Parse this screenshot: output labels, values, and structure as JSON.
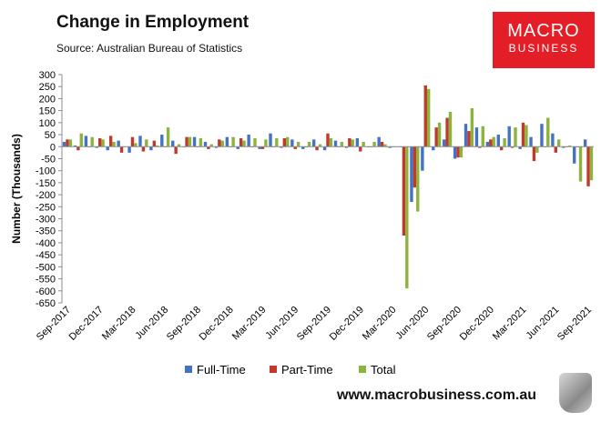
{
  "header": {
    "title": "Change in Employment",
    "subtitle": "Source: Australian Bureau of Statistics"
  },
  "logo": {
    "line1": "MACRO",
    "line2": "BUSINESS"
  },
  "footer": {
    "website": "www.macrobusiness.com.au"
  },
  "colors": {
    "full_time": "#4472c4",
    "part_time": "#c0392b",
    "total": "#8cb43c",
    "logo_bg": "#e41e26"
  },
  "chart_data": {
    "type": "bar",
    "title": "Change in Employment",
    "xlabel": "",
    "ylabel": "Number (Thousands)",
    "ylim": [
      -650,
      300
    ],
    "yticks": [
      300,
      250,
      200,
      150,
      100,
      50,
      0,
      -50,
      -100,
      -150,
      -200,
      -250,
      -300,
      -350,
      -400,
      -450,
      -500,
      -550,
      -600,
      -650
    ],
    "xtick_labels": [
      "Sep-2017",
      "Dec-2017",
      "Mar-2018",
      "Jun-2018",
      "Sep-2018",
      "Dec-2018",
      "Mar-2019",
      "Jun-2019",
      "Sep-2019",
      "Dec-2019",
      "Mar-2020",
      "Jun-2020",
      "Sep-2020",
      "Dec-2020",
      "Mar-2021",
      "Jun-2021",
      "Sep-2021"
    ],
    "categories": [
      "Sep-2017",
      "Oct-2017",
      "Nov-2017",
      "Dec-2017",
      "Jan-2018",
      "Feb-2018",
      "Mar-2018",
      "Apr-2018",
      "May-2018",
      "Jun-2018",
      "Jul-2018",
      "Aug-2018",
      "Sep-2018",
      "Oct-2018",
      "Nov-2018",
      "Dec-2018",
      "Jan-2019",
      "Feb-2019",
      "Mar-2019",
      "Apr-2019",
      "May-2019",
      "Jun-2019",
      "Jul-2019",
      "Aug-2019",
      "Sep-2019",
      "Oct-2019",
      "Nov-2019",
      "Dec-2019",
      "Jan-2020",
      "Feb-2020",
      "Mar-2020",
      "Apr-2020",
      "May-2020",
      "Jun-2020",
      "Jul-2020",
      "Aug-2020",
      "Sep-2020",
      "Oct-2020",
      "Nov-2020",
      "Dec-2020",
      "Jan-2021",
      "Feb-2021",
      "Mar-2021",
      "Apr-2021",
      "May-2021",
      "Jun-2021",
      "Jul-2021",
      "Aug-2021",
      "Sep-2021"
    ],
    "legend": {
      "position": "bottom"
    },
    "grid": false,
    "series": [
      {
        "name": "Full-Time",
        "values": [
          20,
          5,
          45,
          -5,
          -15,
          25,
          -25,
          45,
          -15,
          50,
          25,
          0,
          40,
          20,
          -5,
          40,
          -10,
          50,
          -10,
          55,
          -5,
          30,
          -10,
          30,
          -15,
          25,
          -5,
          35,
          0,
          40,
          -5,
          0,
          -230,
          -100,
          -15,
          30,
          -50,
          95,
          80,
          20,
          50,
          85,
          -10,
          40,
          95,
          55,
          -5,
          -70,
          30
        ]
      },
      {
        "name": "Part-Time",
        "values": [
          30,
          -15,
          0,
          35,
          45,
          -25,
          40,
          -20,
          25,
          0,
          -30,
          40,
          0,
          -10,
          30,
          0,
          35,
          0,
          -10,
          0,
          35,
          -10,
          0,
          -15,
          55,
          0,
          35,
          -20,
          0,
          20,
          0,
          -370,
          -170,
          255,
          80,
          120,
          -45,
          65,
          -5,
          30,
          -15,
          -5,
          100,
          -60,
          0,
          -25,
          0,
          0,
          -165
        ]
      },
      {
        "name": "Total",
        "values": [
          30,
          55,
          40,
          30,
          20,
          0,
          15,
          30,
          5,
          80,
          10,
          40,
          35,
          10,
          25,
          40,
          25,
          35,
          30,
          35,
          40,
          20,
          20,
          10,
          35,
          20,
          30,
          20,
          20,
          10,
          0,
          -590,
          -270,
          240,
          100,
          145,
          -45,
          160,
          85,
          40,
          35,
          80,
          90,
          -25,
          120,
          30,
          5,
          -145,
          -140
        ]
      }
    ]
  }
}
